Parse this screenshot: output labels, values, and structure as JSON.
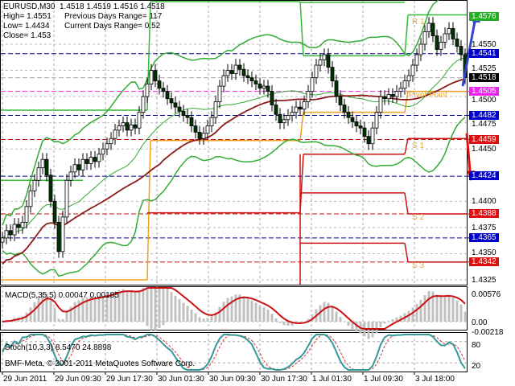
{
  "header": {
    "line1": "EURUSD,M30  1.4518 1.4519 1.4516 1.4518",
    "high": "High= 1.4551",
    "prev_range": "Previous Days Range= 117",
    "low": "Low= 1.4434",
    "cur_range": "Current Days Range= 0.52",
    "close": "Close= 1.453"
  },
  "pivot_labels": {
    "r1": "R 1",
    "pivot": "Pivot Point",
    "s1": "S 1",
    "s2": "S 2",
    "s3": "S 3"
  },
  "price_ticks": [
    "1.4550",
    "1.4525",
    "1.4500",
    "1.4475",
    "1.4450",
    "1.4400",
    "1.4375",
    "1.4350",
    "1.4325"
  ],
  "price_markers": [
    {
      "value": "1.4576",
      "bg": "#22b022",
      "fg": "#ffffff"
    },
    {
      "value": "1.4541",
      "bg": "#0000cc",
      "fg": "#ffffff"
    },
    {
      "value": "1.4518",
      "bg": "#000000",
      "fg": "#ffffff"
    },
    {
      "value": "1.4505",
      "bg": "#ee22ee",
      "fg": "#ffffff"
    },
    {
      "value": "1.4482",
      "bg": "#0000cc",
      "fg": "#ffffff"
    },
    {
      "value": "1.4459",
      "bg": "#e01010",
      "fg": "#ffffff"
    },
    {
      "value": "1.4424",
      "bg": "#0000cc",
      "fg": "#ffffff"
    },
    {
      "value": "1.4388",
      "bg": "#e01010",
      "fg": "#ffffff"
    },
    {
      "value": "1.4365",
      "bg": "#0000cc",
      "fg": "#ffffff"
    },
    {
      "value": "1.4342",
      "bg": "#e01010",
      "fg": "#ffffff"
    }
  ],
  "macd": {
    "label": "MACD(5,35,5) 0.00047 0.00185",
    "ticks": [
      "0.00576",
      "0.00",
      "-0.00218"
    ]
  },
  "stoch": {
    "label": "Stoch(10,3,3) 8.5470 24.8898",
    "ticks": [
      "80",
      "100",
      "20",
      "0"
    ],
    "credit": "BMF-Meta, © 2001-2011 MetaQuotes Software Corp."
  },
  "time_axis": [
    "29 Jun 2011",
    "29 Jun 09:30",
    "29 Jun 17:30",
    "30 Jun 01:30",
    "30 Jun 09:30",
    "30 Jun 17:30",
    "1 Jul 01:30",
    "1 Jul 09:30",
    "3 Jul 18:00"
  ],
  "colors": {
    "bull": "#ffffff",
    "bear": "#003300",
    "bands": "#33aa33",
    "ma": "#8b1a1a",
    "pivot": "#f0a020",
    "resistance": "#33bb33",
    "support": "#cc1111",
    "macd_signal": "#cc1111",
    "stoch_main": "#339999",
    "stoch_signal": "#cc3333",
    "up_arrow": "#3344cc",
    "down_arrow": "#dd1111"
  },
  "chart_data": {
    "type": "candlestick",
    "symbol": "EURUSD",
    "timeframe": "M30",
    "ylim": [
      1.431,
      1.46
    ],
    "closes": [
      1.4365,
      1.4372,
      1.4368,
      1.4378,
      1.4375,
      1.438,
      1.4395,
      1.441,
      1.442,
      1.4432,
      1.444,
      1.4425,
      1.44,
      1.438,
      1.4352,
      1.4385,
      1.442,
      1.4428,
      1.4435,
      1.443,
      1.444,
      1.4436,
      1.4442,
      1.4438,
      1.4445,
      1.445,
      1.4455,
      1.446,
      1.4468,
      1.4472,
      1.4475,
      1.4468,
      1.4473,
      1.447,
      1.4485,
      1.45,
      1.4512,
      1.4525,
      1.4515,
      1.4508,
      1.4505,
      1.4498,
      1.4494,
      1.449,
      1.4486,
      1.4482,
      1.448,
      1.4472,
      1.4466,
      1.446,
      1.4465,
      1.4472,
      1.448,
      1.4495,
      1.451,
      1.452,
      1.4525,
      1.4522,
      1.453,
      1.4526,
      1.452,
      1.4518,
      1.4515,
      1.4512,
      1.4508,
      1.451,
      1.4505,
      1.4492,
      1.4483,
      1.4475,
      1.4478,
      1.4482,
      1.4485,
      1.449,
      1.4488,
      1.4495,
      1.4505,
      1.4518,
      1.453,
      1.4535,
      1.454,
      1.4528,
      1.4515,
      1.45,
      1.4492,
      1.4485,
      1.448,
      1.4476,
      1.4472,
      1.447,
      1.4462,
      1.4455,
      1.447,
      1.4485,
      1.45,
      1.4498,
      1.4502,
      1.45,
      1.4505,
      1.4508,
      1.4515,
      1.452,
      1.453,
      1.454,
      1.455,
      1.4562,
      1.457,
      1.4558,
      1.4545,
      1.4552,
      1.456,
      1.4565,
      1.4555,
      1.4548,
      1.454,
      1.4518
    ],
    "horizontal_levels": [
      {
        "value": 1.4541,
        "color": "#000088"
      },
      {
        "value": 1.4482,
        "color": "#000088"
      },
      {
        "value": 1.4424,
        "color": "#000088"
      },
      {
        "value": 1.4365,
        "color": "#000088"
      },
      {
        "value": 1.4459,
        "color": "#cc1111"
      },
      {
        "value": 1.4388,
        "color": "#cc1111"
      },
      {
        "value": 1.4342,
        "color": "#cc1111"
      },
      {
        "value": 1.4505,
        "color": "#ee22ee"
      },
      {
        "value": 1.4518,
        "color": "#aaaaaa"
      }
    ],
    "pivot_steps": [
      {
        "name": "R1",
        "color": "#33bb33",
        "segments": [
          [
            0,
            36,
            1.4487
          ],
          [
            36,
            74,
            1.4595
          ],
          [
            74,
            100,
            1.4539
          ],
          [
            100,
            116,
            1.4578
          ]
        ]
      },
      {
        "name": "R2",
        "color": "#33bb33",
        "segments": [
          [
            0,
            20,
            1.442
          ],
          [
            74,
            100,
            1.459
          ]
        ]
      },
      {
        "name": "Pivot",
        "color": "#f0a020",
        "segments": [
          [
            0,
            36,
            1.4325
          ],
          [
            36,
            74,
            1.4458
          ],
          [
            74,
            100,
            1.4485
          ],
          [
            100,
            116,
            1.4505
          ]
        ]
      },
      {
        "name": "S1",
        "color": "#cc1111",
        "segments": [
          [
            36,
            74,
            1.4389
          ],
          [
            74,
            100,
            1.4445
          ],
          [
            100,
            116,
            1.446
          ]
        ]
      },
      {
        "name": "S2",
        "color": "#cc1111",
        "segments": [
          [
            74,
            100,
            1.4408
          ],
          [
            100,
            116,
            1.4388
          ]
        ]
      },
      {
        "name": "S3",
        "color": "#cc1111",
        "segments": [
          [
            74,
            100,
            1.436
          ],
          [
            100,
            116,
            1.4342
          ]
        ]
      }
    ],
    "forecast_arrows": [
      {
        "direction": "up",
        "from": 1.451,
        "to": 1.458
      },
      {
        "direction": "down",
        "from": 1.4465,
        "to": 1.442
      }
    ]
  }
}
